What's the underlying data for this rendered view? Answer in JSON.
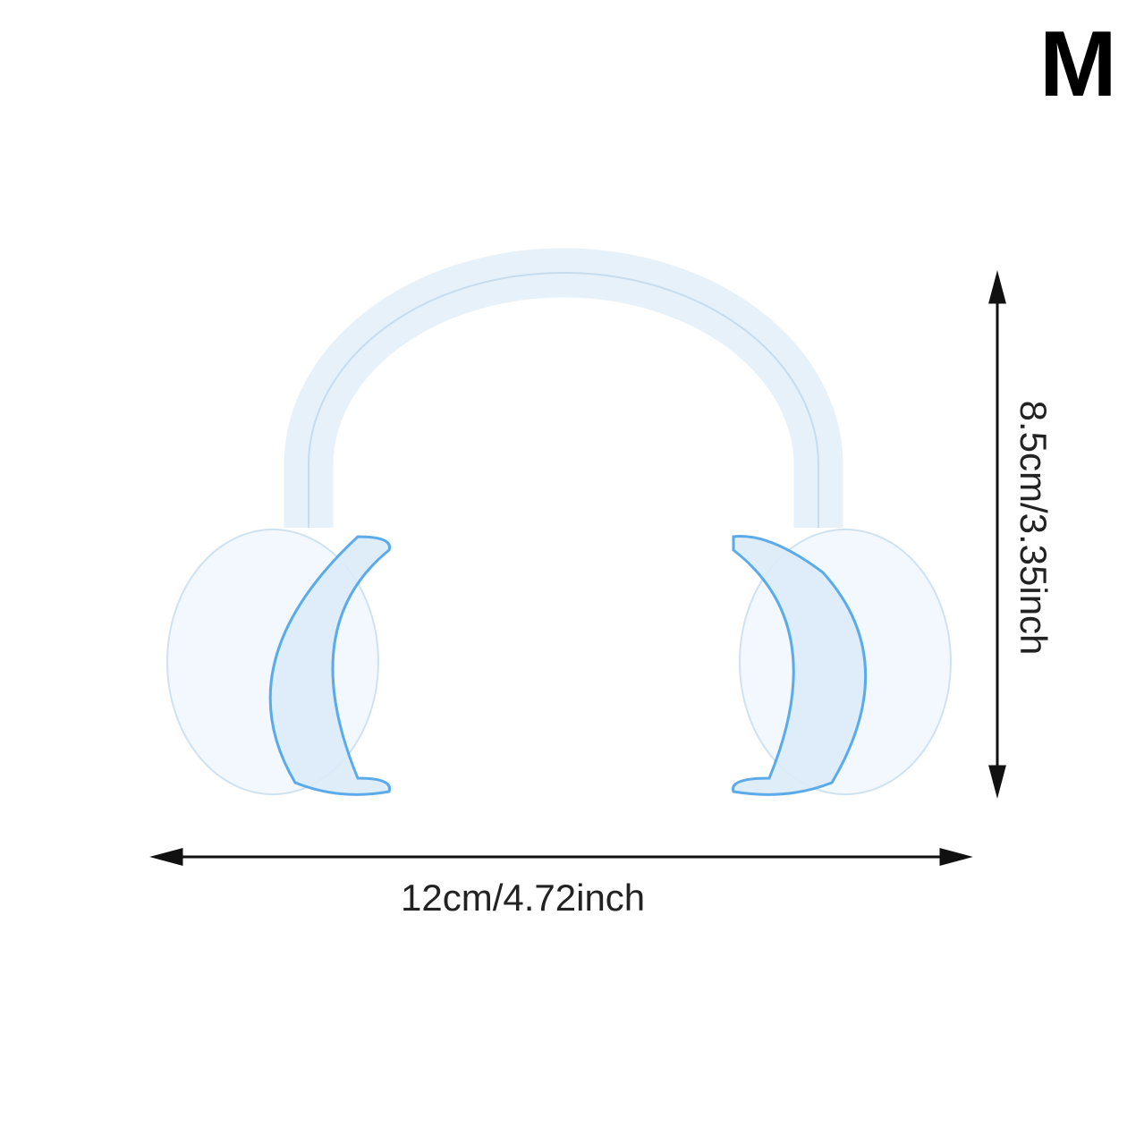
{
  "size_label": "M",
  "width_label": "12cm/4.72inch",
  "height_label": "8.5cm/3.35inch",
  "colors": {
    "product": "#4aa3e8",
    "outline": "#c7dff2",
    "arrow": "#111111"
  }
}
